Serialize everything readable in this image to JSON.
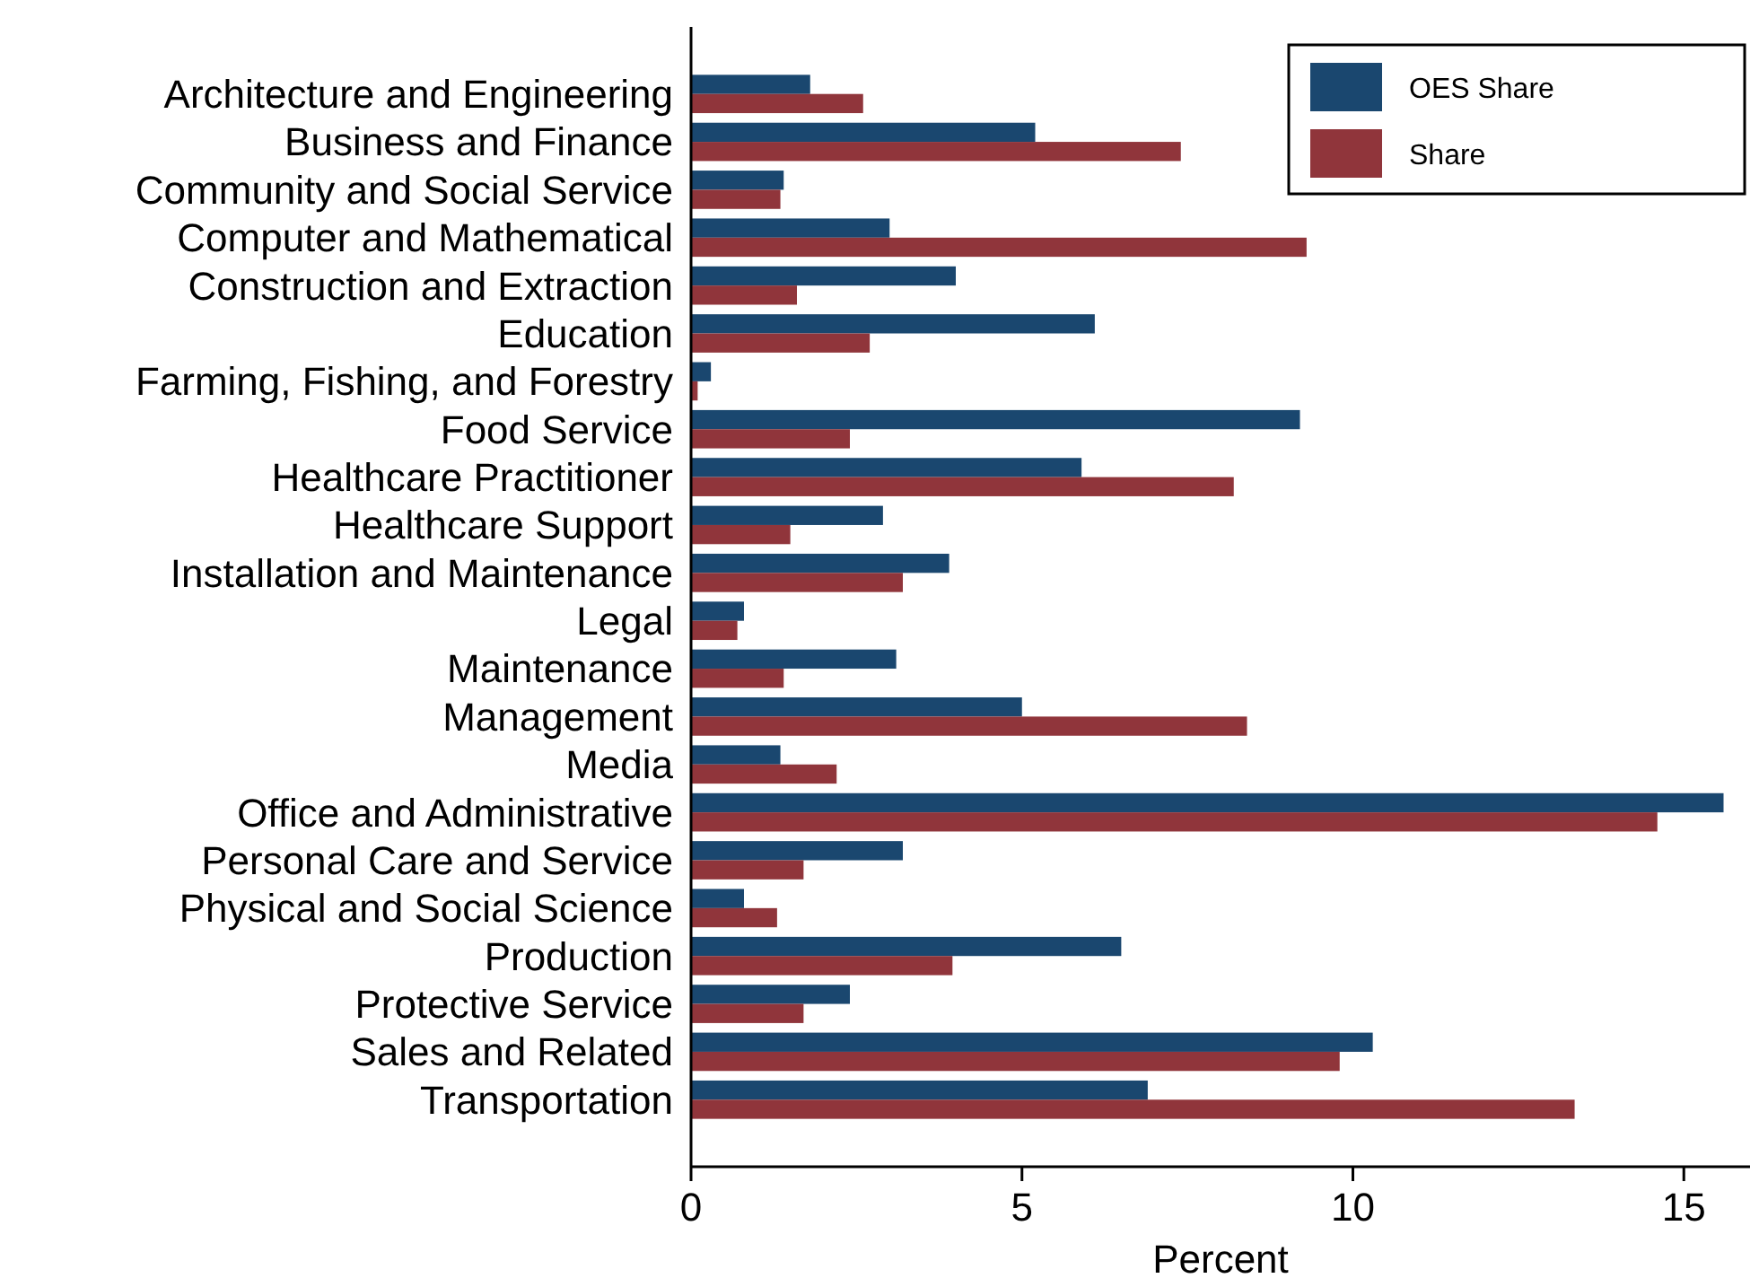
{
  "chart_data": {
    "type": "bar",
    "orientation": "horizontal",
    "xlabel": "Percent",
    "categories": [
      "Architecture and Engineering",
      "Business and Finance",
      "Community and Social Service",
      "Computer and Mathematical",
      "Construction and Extraction",
      "Education",
      "Farming, Fishing, and Forestry",
      "Food Service",
      "Healthcare Practitioner",
      "Healthcare Support",
      "Installation and Maintenance",
      "Legal",
      "Maintenance",
      "Management",
      "Media",
      "Office and Administrative",
      "Personal Care and Service",
      "Physical and Social Science",
      "Production",
      "Protective Service",
      "Sales and Related",
      "Transportation"
    ],
    "series": [
      {
        "name": "OES Share",
        "color": "#1a476f",
        "values": [
          1.8,
          5.2,
          1.4,
          3.0,
          4.0,
          6.1,
          0.3,
          9.2,
          5.9,
          2.9,
          3.9,
          0.8,
          3.1,
          5.0,
          1.35,
          15.6,
          3.2,
          0.8,
          6.5,
          2.4,
          10.3,
          6.9
        ]
      },
      {
        "name": "Share",
        "color": "#90353b",
        "values": [
          2.6,
          7.4,
          1.35,
          9.3,
          1.6,
          2.7,
          0.1,
          2.4,
          8.2,
          1.5,
          3.2,
          0.7,
          1.4,
          8.4,
          2.2,
          14.6,
          1.7,
          1.3,
          3.95,
          1.7,
          9.8,
          13.35
        ]
      }
    ],
    "xlim": [
      0,
      16
    ],
    "xticks": [
      0,
      5,
      10,
      15
    ],
    "grid": false,
    "legend": "top right"
  }
}
